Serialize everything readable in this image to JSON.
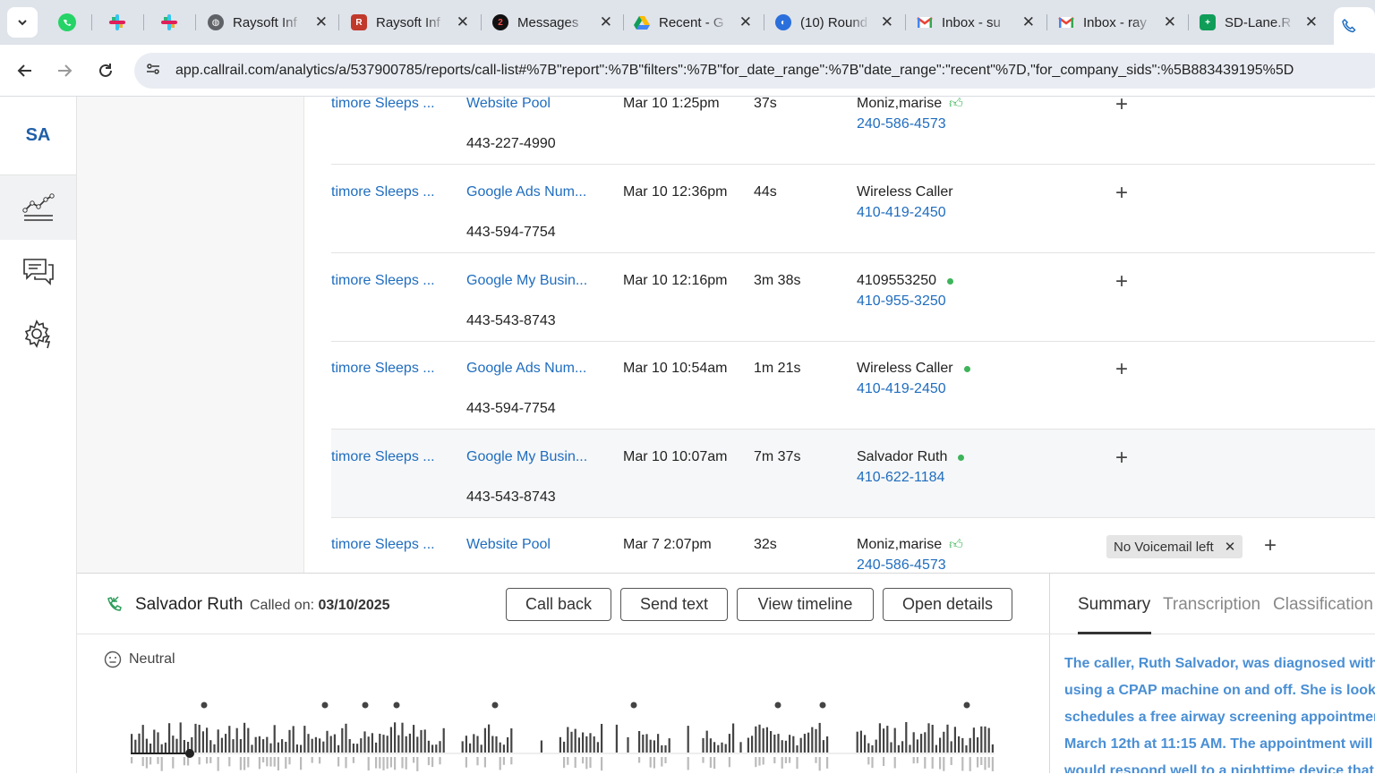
{
  "browser": {
    "tabs": [
      {
        "title": "Raysoft Inf",
        "icon": "globe-icon"
      },
      {
        "title": "Raysoft Inf",
        "icon": "raysoft-icon"
      },
      {
        "title": "Messages",
        "icon": "messages-icon",
        "badge": "2"
      },
      {
        "title": "Recent - G",
        "icon": "google-drive-icon"
      },
      {
        "title": "(10) Round",
        "icon": "roundtable-icon"
      },
      {
        "title": "Inbox - su",
        "icon": "gmail-icon"
      },
      {
        "title": "Inbox - ray",
        "icon": "gmail-icon"
      },
      {
        "title": "SD-Lane.R",
        "icon": "sheets-icon"
      }
    ],
    "url": "app.callrail.com/analytics/a/537900785/reports/call-list#%7B\"report\":%7B\"filters\":%7B\"for_date_range\":%7B\"date_range\":\"recent\"%7D,\"for_company_sids\":%5B883439195%5D"
  },
  "sidebar": {
    "logo": "SA",
    "items": [
      {
        "name": "analytics",
        "icon": "analytics-chart-icon"
      },
      {
        "name": "conversations",
        "icon": "chat-bubbles-icon"
      },
      {
        "name": "settings",
        "icon": "gear-icon"
      }
    ]
  },
  "calls": [
    {
      "company": "timore Sleeps ...",
      "source": "Website Pool",
      "tracking": "443-227-4990",
      "date": "Mar 10 1:25pm",
      "duration": "37s",
      "caller": "Moniz,marise",
      "caller_phone": "240-586-4573",
      "indicator": "thumb"
    },
    {
      "company": "timore Sleeps ...",
      "source": "Google Ads Num...",
      "tracking": "443-594-7754",
      "date": "Mar 10 12:36pm",
      "duration": "44s",
      "caller": "Wireless Caller",
      "caller_phone": "410-419-2450",
      "indicator": ""
    },
    {
      "company": "timore Sleeps ...",
      "source": "Google My Busin...",
      "tracking": "443-543-8743",
      "date": "Mar 10 12:16pm",
      "duration": "3m 38s",
      "caller": "4109553250",
      "caller_phone": "410-955-3250",
      "indicator": "dot"
    },
    {
      "company": "timore Sleeps ...",
      "source": "Google Ads Num...",
      "tracking": "443-594-7754",
      "date": "Mar 10 10:54am",
      "duration": "1m 21s",
      "caller": "Wireless Caller",
      "caller_phone": "410-419-2450",
      "indicator": "dot"
    },
    {
      "company": "timore Sleeps ...",
      "source": "Google My Busin...",
      "tracking": "443-543-8743",
      "date": "Mar 10 10:07am",
      "duration": "7m 37s",
      "caller": "Salvador Ruth",
      "caller_phone": "410-622-1184",
      "indicator": "dot"
    },
    {
      "company": "timore Sleeps ...",
      "source": "Website Pool",
      "tracking": "",
      "date": "Mar 7 2:07pm",
      "duration": "32s",
      "caller": "Moniz,marise",
      "caller_phone": "240-586-4573",
      "indicator": "thumb",
      "tag": "No Voicemail left"
    }
  ],
  "call_panel": {
    "name": "Salvador Ruth",
    "called_label": "Called on:",
    "called_date": "03/10/2025",
    "buttons": {
      "call_back": "Call back",
      "send_text": "Send text",
      "view_timeline": "View timeline",
      "open_details": "Open details"
    },
    "sentiment": "Neutral"
  },
  "summary_panel": {
    "tabs": [
      "Summary",
      "Transcription",
      "Classification"
    ],
    "active_tab": "Summary",
    "lines": [
      "The caller, Ruth Salvador, was diagnosed with",
      "using a CPAP machine on and off. She is lookin",
      "schedules a free airway screening appointmen",
      "March 12th at 11:15 AM. The appointment will",
      "would respond well to a nighttime device that"
    ]
  },
  "colors": {
    "link": "#1f6dbf",
    "accent_dot": "#3db45a",
    "summary_text": "#4a8fd4"
  }
}
